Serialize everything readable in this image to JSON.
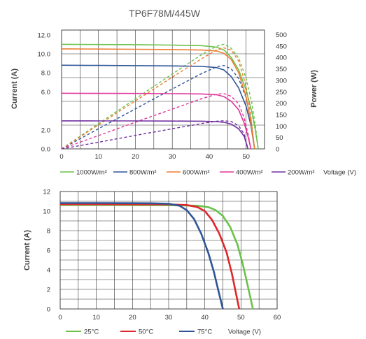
{
  "chart_data": [
    {
      "type": "line",
      "title": "TP6F78M/445W",
      "xlabel": "",
      "ylabel": "Current (A)",
      "y2label": "Power (W)",
      "x_ticks": [
        "0",
        "10",
        "20",
        "30",
        "40",
        "50"
      ],
      "y_ticks": [
        "0.0",
        "2.0",
        "6.0",
        "8.0",
        "10.0",
        "12.0"
      ],
      "y2_ticks": [
        "0",
        "50",
        "100",
        "150",
        "200",
        "250",
        "300",
        "350",
        "400",
        "450",
        "500"
      ],
      "xlim": [
        0,
        55
      ],
      "ylim": [
        0,
        12.5
      ],
      "y2lim": [
        0,
        520
      ],
      "grid": true,
      "legend_position": "bottom",
      "legend_extra": "Voltage (V)",
      "series": [
        {
          "name": "1000W/m²",
          "color": "#6cc24a",
          "current": [
            [
              0,
              11.0
            ],
            [
              10,
              10.98
            ],
            [
              20,
              10.96
            ],
            [
              30,
              10.92
            ],
            [
              38,
              10.86
            ],
            [
              42,
              10.7
            ],
            [
              44,
              10.4
            ],
            [
              46,
              9.6
            ],
            [
              48,
              8.3
            ],
            [
              50,
              6.2
            ],
            [
              51.5,
              4.0
            ],
            [
              52.5,
              2.0
            ],
            [
              53.3,
              0
            ]
          ],
          "power": [
            [
              0,
              0
            ],
            [
              10,
              110
            ],
            [
              20,
              219
            ],
            [
              30,
              328
            ],
            [
              38,
              413
            ],
            [
              42,
              449
            ],
            [
              44,
              458
            ],
            [
              46,
              440
            ],
            [
              48,
              398
            ],
            [
              50,
              310
            ],
            [
              51.5,
              206
            ],
            [
              52.5,
              105
            ],
            [
              53.3,
              0
            ]
          ]
        },
        {
          "name": "800W/m²",
          "color": "#2f5597",
          "current": [
            [
              0,
              8.8
            ],
            [
              10,
              8.78
            ],
            [
              20,
              8.76
            ],
            [
              30,
              8.73
            ],
            [
              38,
              8.68
            ],
            [
              42,
              8.55
            ],
            [
              44,
              8.3
            ],
            [
              46,
              7.6
            ],
            [
              48,
              6.4
            ],
            [
              50,
              4.5
            ],
            [
              51.3,
              2.5
            ],
            [
              52.3,
              0
            ]
          ],
          "power": [
            [
              0,
              0
            ],
            [
              10,
              88
            ],
            [
              20,
              175
            ],
            [
              30,
              262
            ],
            [
              38,
              330
            ],
            [
              42,
              359
            ],
            [
              44,
              365
            ],
            [
              46,
              350
            ],
            [
              48,
              307
            ],
            [
              50,
              225
            ],
            [
              51.3,
              128
            ],
            [
              52.3,
              0
            ]
          ]
        },
        {
          "name": "600W/m²",
          "color": "#ed7d31",
          "current": [
            [
              0,
              10.52
            ],
            [
              10,
              10.5
            ],
            [
              20,
              10.48
            ],
            [
              30,
              10.45
            ],
            [
              38,
              10.4
            ],
            [
              42,
              10.3
            ],
            [
              44,
              10.05
            ],
            [
              46,
              9.4
            ],
            [
              48,
              8.0
            ],
            [
              50,
              5.5
            ],
            [
              51.2,
              3.0
            ],
            [
              52.3,
              0
            ]
          ],
          "power": [
            [
              0,
              0
            ],
            [
              10,
              105
            ],
            [
              20,
              210
            ],
            [
              30,
              314
            ],
            [
              38,
              395
            ],
            [
              42,
              433
            ],
            [
              44,
              442
            ],
            [
              46,
              432
            ],
            [
              48,
              384
            ],
            [
              50,
              275
            ],
            [
              51.2,
              154
            ],
            [
              52.3,
              0
            ]
          ]
        },
        {
          "name": "400W/m²",
          "color": "#e0359a",
          "current": [
            [
              0,
              5.85
            ],
            [
              10,
              5.84
            ],
            [
              20,
              5.83
            ],
            [
              30,
              5.81
            ],
            [
              38,
              5.78
            ],
            [
              42,
              5.7
            ],
            [
              44,
              5.5
            ],
            [
              46,
              5.0
            ],
            [
              48,
              4.1
            ],
            [
              49.5,
              2.7
            ],
            [
              50.6,
              1.2
            ],
            [
              51.3,
              0
            ]
          ],
          "power": [
            [
              0,
              0
            ],
            [
              10,
              58
            ],
            [
              20,
              117
            ],
            [
              30,
              174
            ],
            [
              38,
              220
            ],
            [
              42,
              239
            ],
            [
              44,
              242
            ],
            [
              46,
              230
            ],
            [
              48,
              197
            ],
            [
              49.5,
              134
            ],
            [
              50.6,
              61
            ],
            [
              51.3,
              0
            ]
          ]
        },
        {
          "name": "200W/m²",
          "color": "#7030a0",
          "current": [
            [
              0,
              2.95
            ],
            [
              10,
              2.94
            ],
            [
              20,
              2.94
            ],
            [
              30,
              2.93
            ],
            [
              38,
              2.91
            ],
            [
              42,
              2.87
            ],
            [
              44,
              2.8
            ],
            [
              46,
              2.6
            ],
            [
              48,
              2.1
            ],
            [
              49.5,
              1.3
            ],
            [
              50.5,
              0
            ]
          ],
          "power": [
            [
              0,
              0
            ],
            [
              10,
              29
            ],
            [
              20,
              59
            ],
            [
              30,
              88
            ],
            [
              38,
              111
            ],
            [
              42,
              121
            ],
            [
              44,
              123
            ],
            [
              46,
              120
            ],
            [
              48,
              101
            ],
            [
              49.5,
              64
            ],
            [
              50.5,
              0
            ]
          ]
        }
      ]
    },
    {
      "type": "line",
      "title": "",
      "xlabel": "",
      "ylabel": "Current (A)",
      "x_ticks": [
        "0",
        "10",
        "20",
        "30",
        "40",
        "50",
        "60"
      ],
      "y_ticks": [
        "0",
        "2",
        "4",
        "6",
        "8",
        "10",
        "12"
      ],
      "xlim": [
        0,
        60
      ],
      "ylim": [
        0,
        12
      ],
      "grid": true,
      "legend_position": "bottom",
      "legend_extra": "Voltage (V)",
      "series": [
        {
          "name": "25°C",
          "color": "#6cc24a",
          "current": [
            [
              0,
              10.62
            ],
            [
              10,
              10.62
            ],
            [
              20,
              10.61
            ],
            [
              30,
              10.6
            ],
            [
              38,
              10.55
            ],
            [
              41,
              10.4
            ],
            [
              43,
              10.1
            ],
            [
              45,
              9.5
            ],
            [
              47,
              8.4
            ],
            [
              49,
              6.6
            ],
            [
              50.5,
              4.6
            ],
            [
              51.8,
              2.5
            ],
            [
              53.3,
              0
            ]
          ]
        },
        {
          "name": "50°C",
          "color": "#e0262b",
          "current": [
            [
              0,
              10.7
            ],
            [
              10,
              10.7
            ],
            [
              20,
              10.69
            ],
            [
              30,
              10.68
            ],
            [
              35,
              10.62
            ],
            [
              38,
              10.4
            ],
            [
              40,
              10.0
            ],
            [
              42,
              9.1
            ],
            [
              44,
              7.7
            ],
            [
              46,
              5.8
            ],
            [
              47.5,
              3.6
            ],
            [
              48.5,
              1.8
            ],
            [
              49.5,
              0
            ]
          ]
        },
        {
          "name": "75°C",
          "color": "#2f5597",
          "current": [
            [
              0,
              10.82
            ],
            [
              10,
              10.82
            ],
            [
              20,
              10.81
            ],
            [
              25,
              10.8
            ],
            [
              30,
              10.75
            ],
            [
              33,
              10.55
            ],
            [
              35,
              10.1
            ],
            [
              37,
              9.2
            ],
            [
              39,
              7.7
            ],
            [
              41,
              5.7
            ],
            [
              42.5,
              3.8
            ],
            [
              43.8,
              1.8
            ],
            [
              45,
              0
            ]
          ]
        }
      ]
    }
  ]
}
